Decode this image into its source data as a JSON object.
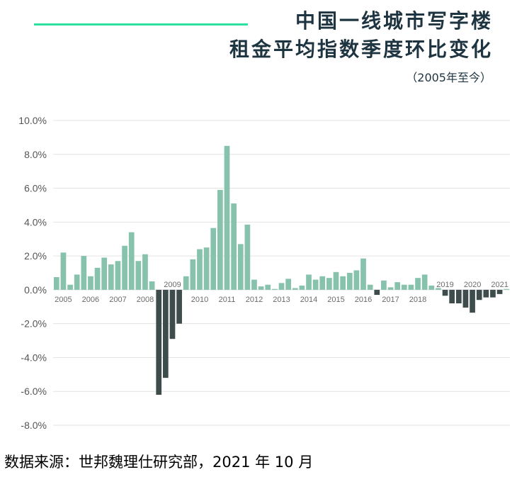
{
  "title_line1": "中国一线城市写字楼",
  "title_line2": "租金平均指数季度环比变化",
  "subtitle": "（2005年至今）",
  "source": "数据来源：世邦魏理仕研究部，2021 年 10 月",
  "colors": {
    "positive": "#86c2ac",
    "negative": "#3f4c4c",
    "accent": "#2ee0a0",
    "grid": "#e3e3e3"
  },
  "chart_data": {
    "type": "bar",
    "title": "中国一线城市写字楼租金平均指数季度环比变化",
    "ylabel": "",
    "xlabel": "",
    "ylim": [
      -8,
      10
    ],
    "yticks": [
      "10.0%",
      "8.0%",
      "6.0%",
      "4.0%",
      "2.0%",
      "0.0%",
      "-2.0%",
      "-4.0%",
      "-6.0%",
      "-8.0%"
    ],
    "ytick_values": [
      10,
      8,
      6,
      4,
      2,
      0,
      -2,
      -4,
      -6,
      -8
    ],
    "year_labels": [
      "2005",
      "2006",
      "2007",
      "2008",
      "2009",
      "2010",
      "2011",
      "2012",
      "2013",
      "2014",
      "2015",
      "2016",
      "2017",
      "2018",
      "2019",
      "2020",
      "2021"
    ],
    "values": [
      0.75,
      2.2,
      0.3,
      0.9,
      2.0,
      0.8,
      1.3,
      1.9,
      1.5,
      1.7,
      2.6,
      3.4,
      1.7,
      2.1,
      0.5,
      -6.2,
      -5.2,
      -2.9,
      -2.0,
      0.8,
      1.8,
      2.4,
      2.5,
      3.65,
      5.9,
      8.5,
      5.1,
      2.7,
      3.85,
      0.6,
      0.2,
      0.3,
      0.05,
      0.4,
      0.65,
      0.1,
      0.25,
      0.9,
      0.6,
      0.8,
      0.7,
      1.05,
      0.8,
      1.0,
      1.15,
      1.85,
      0.3,
      -0.3,
      0.55,
      0.15,
      0.45,
      0.3,
      0.3,
      0.7,
      0.9,
      0.25,
      0.1,
      -0.35,
      -0.8,
      -0.8,
      -1.05,
      -1.35,
      -0.6,
      -0.45,
      -0.45,
      -0.25,
      0.05
    ]
  }
}
